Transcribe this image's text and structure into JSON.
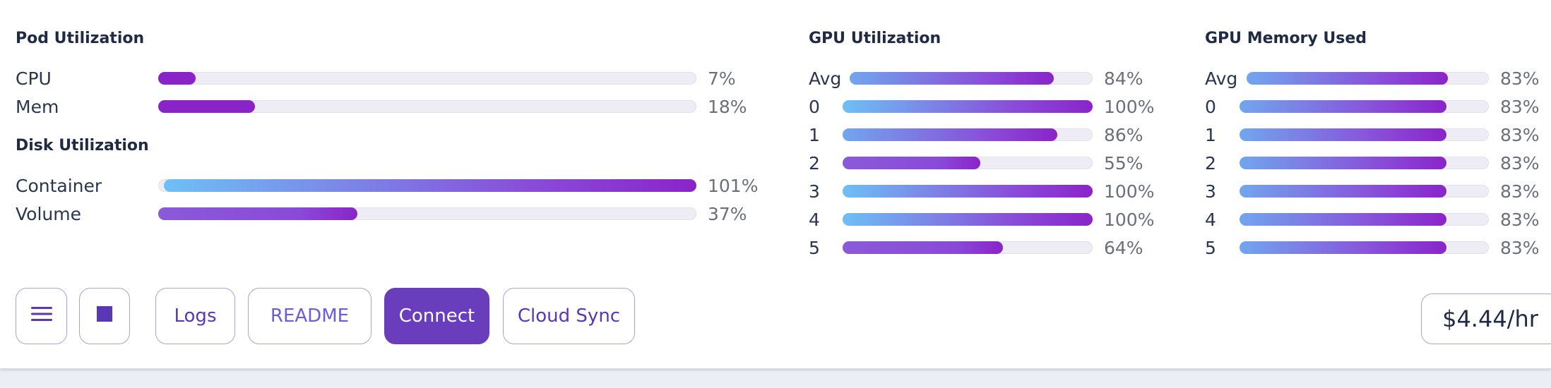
{
  "pod": {
    "title": "Pod Utilization",
    "rows": [
      {
        "label": "CPU",
        "value": 7,
        "text": "7%"
      },
      {
        "label": "Mem",
        "value": 18,
        "text": "18%"
      }
    ]
  },
  "disk": {
    "title": "Disk Utilization",
    "rows": [
      {
        "label": "Container",
        "value": 101,
        "text": "101%"
      },
      {
        "label": "Volume",
        "value": 37,
        "text": "37%"
      }
    ]
  },
  "gpu_util": {
    "title": "GPU Utilization",
    "rows": [
      {
        "label": "Avg",
        "value": 84,
        "text": "84%"
      },
      {
        "label": "0",
        "value": 100,
        "text": "100%"
      },
      {
        "label": "1",
        "value": 86,
        "text": "86%"
      },
      {
        "label": "2",
        "value": 55,
        "text": "55%"
      },
      {
        "label": "3",
        "value": 100,
        "text": "100%"
      },
      {
        "label": "4",
        "value": 100,
        "text": "100%"
      },
      {
        "label": "5",
        "value": 64,
        "text": "64%"
      }
    ]
  },
  "gpu_mem": {
    "title": "GPU Memory Used",
    "rows": [
      {
        "label": "Avg",
        "value": 83,
        "text": "83%"
      },
      {
        "label": "0",
        "value": 83,
        "text": "83%"
      },
      {
        "label": "1",
        "value": 83,
        "text": "83%"
      },
      {
        "label": "2",
        "value": 83,
        "text": "83%"
      },
      {
        "label": "3",
        "value": 83,
        "text": "83%"
      },
      {
        "label": "4",
        "value": 83,
        "text": "83%"
      },
      {
        "label": "5",
        "value": 83,
        "text": "83%"
      }
    ]
  },
  "toolbar": {
    "menu_icon": "hamburger-menu-icon",
    "stop_icon": "stop-square-icon",
    "logs_label": "Logs",
    "readme_label": "README",
    "connect_label": "Connect",
    "cloud_sync_label": "Cloud Sync"
  },
  "price": "$4.44/hr",
  "colors": {
    "accent": "#6a3dbd",
    "bar_purple": "#8a24c9",
    "bar_blue": "#6ec0f5",
    "track": "#eeecf4"
  }
}
